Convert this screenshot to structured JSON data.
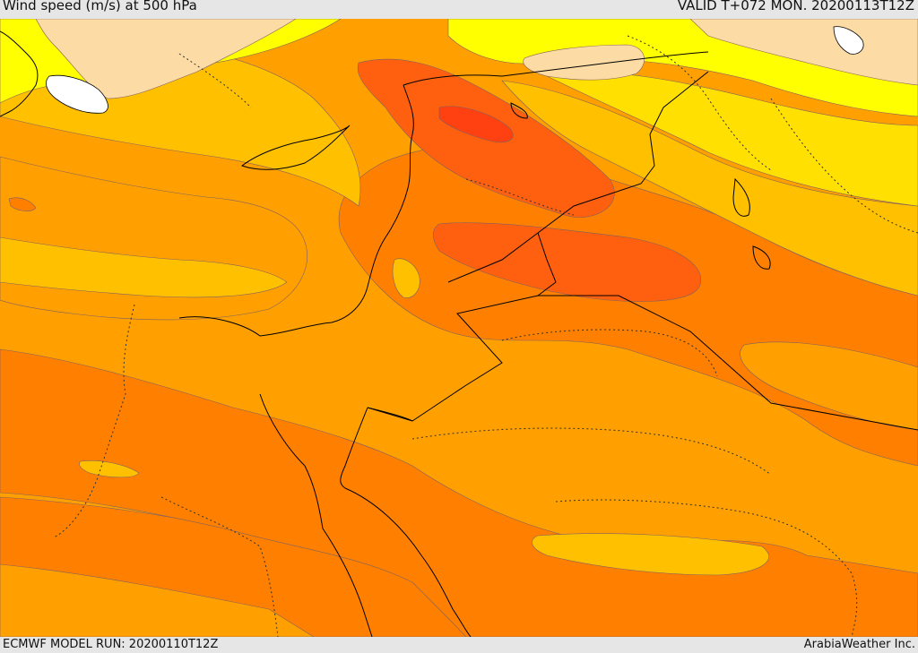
{
  "header": {
    "title": "Wind speed (m/s) at 500 hPa",
    "valid": "VALID T+072 MON. 20200113T12Z"
  },
  "footer": {
    "model_run": "ECMWF MODEL RUN: 20200110T12Z",
    "credit": "ArabiaWeather Inc."
  },
  "map": {
    "field": "wind-speed-500hPa",
    "colors": {
      "pale": "#fddba4",
      "yellow": "#ffff00",
      "gold": "#ffe000",
      "amber": "#ffc000",
      "orange": "#ffa000",
      "dark_orange": "#ff8000",
      "red_orange": "#ff6010",
      "red": "#ff4010",
      "land_white": "#ffffff"
    }
  }
}
